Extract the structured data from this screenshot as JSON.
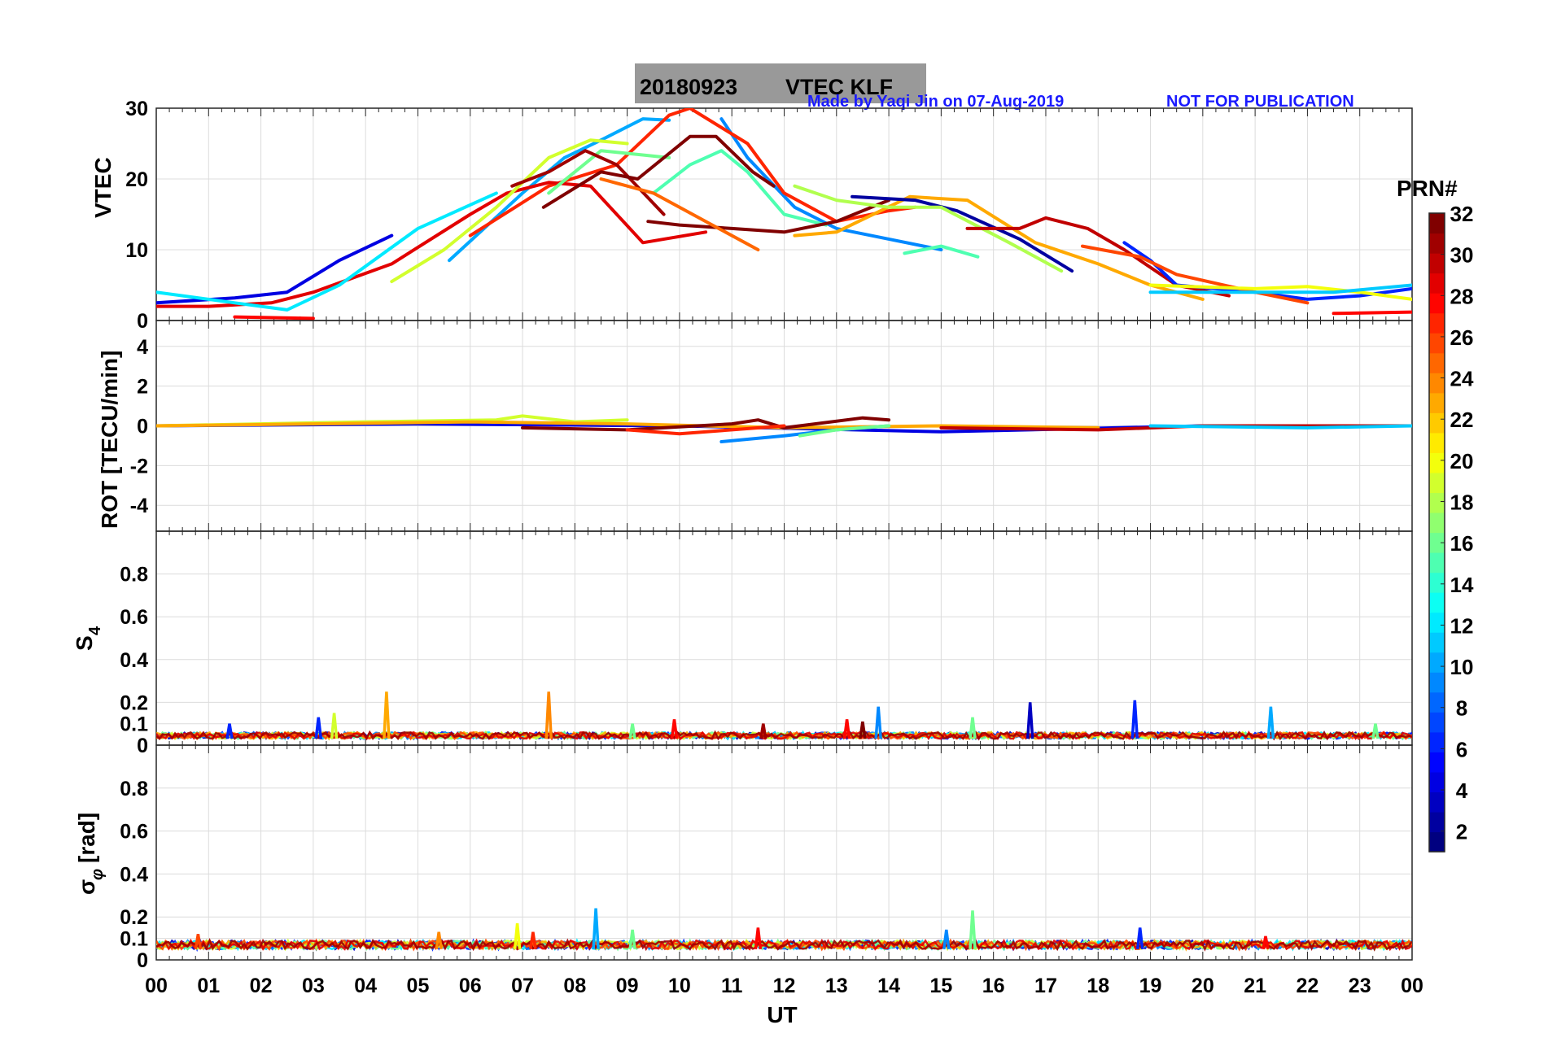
{
  "title": {
    "date": "20180923",
    "text": "VTEC  KLF",
    "credit": "Made by Yaqi Jin on 07-Aug-2019",
    "notice": "NOT FOR PUBLICATION",
    "credit_color": "#1a1aff"
  },
  "xlabel": "UT",
  "xticks": [
    "00",
    "01",
    "02",
    "03",
    "04",
    "05",
    "06",
    "07",
    "08",
    "09",
    "10",
    "11",
    "12",
    "13",
    "14",
    "15",
    "16",
    "17",
    "18",
    "19",
    "20",
    "21",
    "22",
    "23",
    "00"
  ],
  "colorbar": {
    "title": "PRN#",
    "colormap": "jet",
    "range": [
      1,
      32
    ],
    "ticks": [
      "2",
      "4",
      "6",
      "8",
      "10",
      "12",
      "14",
      "16",
      "18",
      "20",
      "22",
      "24",
      "26",
      "28",
      "30",
      "32"
    ]
  },
  "chart_data": [
    {
      "id": "vtec",
      "type": "line",
      "ylabel": "VTEC",
      "xlim": [
        0,
        24
      ],
      "ylim": [
        0,
        30
      ],
      "yticks": [
        "0",
        "10",
        "20",
        "30"
      ],
      "grid": true,
      "series": [
        {
          "prn": 4,
          "points": [
            [
              0,
              2.5
            ],
            [
              1.5,
              3.2
            ],
            [
              2.5,
              4
            ],
            [
              3.5,
              8.5
            ],
            [
              4.5,
              12
            ]
          ]
        },
        {
          "prn": 10,
          "points": [
            [
              5.6,
              8.5
            ],
            [
              7,
              18
            ],
            [
              7.8,
              23
            ],
            [
              8.5,
              25.5
            ],
            [
              9.3,
              28.5
            ],
            [
              9.8,
              28.3
            ]
          ]
        },
        {
          "prn": 9,
          "points": [
            [
              10.8,
              28.5
            ],
            [
              11.3,
              23
            ],
            [
              12.2,
              16
            ],
            [
              13,
              13
            ],
            [
              14,
              11.5
            ],
            [
              15,
              10
            ]
          ]
        },
        {
          "prn": 27,
          "points": [
            [
              6,
              12
            ],
            [
              7.5,
              19
            ],
            [
              8.8,
              22
            ],
            [
              9.8,
              29
            ],
            [
              10.2,
              30
            ],
            [
              11.3,
              25
            ],
            [
              12,
              18
            ],
            [
              13,
              14
            ],
            [
              14,
              15.5
            ],
            [
              14.5,
              16
            ]
          ]
        },
        {
          "prn": 29,
          "points": [
            [
              0,
              2
            ],
            [
              1,
              2
            ],
            [
              2.2,
              2.5
            ],
            [
              3,
              4
            ],
            [
              4.5,
              8
            ],
            [
              6,
              15
            ],
            [
              6.7,
              18
            ],
            [
              7.5,
              19.5
            ],
            [
              8.3,
              19
            ],
            [
              9.3,
              11
            ],
            [
              10.5,
              12.5
            ]
          ]
        },
        {
          "prn": 19,
          "points": [
            [
              4.5,
              5.5
            ],
            [
              5.5,
              10
            ],
            [
              6.5,
              16
            ],
            [
              7.5,
              23
            ],
            [
              8.3,
              25.5
            ],
            [
              9,
              25
            ]
          ]
        },
        {
          "prn": 16,
          "points": [
            [
              7.5,
              18
            ],
            [
              8.5,
              24
            ],
            [
              9.8,
              23
            ]
          ]
        },
        {
          "prn": 15,
          "points": [
            [
              9.5,
              18
            ],
            [
              10.2,
              22
            ],
            [
              10.8,
              24
            ],
            [
              11.3,
              21
            ],
            [
              12,
              15
            ],
            [
              12.8,
              13.5
            ]
          ]
        },
        {
          "prn": 31,
          "points": [
            [
              6.8,
              19
            ],
            [
              7.5,
              21
            ],
            [
              8.2,
              24
            ],
            [
              8.8,
              22
            ],
            [
              9.7,
              15
            ]
          ]
        },
        {
          "prn": 32,
          "points": [
            [
              7.4,
              16
            ],
            [
              8.5,
              21
            ],
            [
              9.2,
              20
            ],
            [
              10.2,
              26
            ],
            [
              10.7,
              26
            ],
            [
              11.4,
              21
            ],
            [
              11.8,
              19
            ]
          ]
        },
        {
          "prn": 32,
          "points": [
            [
              9.4,
              14
            ],
            [
              10,
              13.5
            ],
            [
              11,
              13
            ],
            [
              12,
              12.5
            ],
            [
              13,
              14
            ],
            [
              14,
              17
            ]
          ]
        },
        {
          "prn": 25,
          "points": [
            [
              8.5,
              20
            ],
            [
              9.5,
              18
            ],
            [
              10.5,
              14
            ],
            [
              11.5,
              10
            ]
          ]
        },
        {
          "prn": 23,
          "points": [
            [
              12.2,
              12
            ],
            [
              13,
              12.5
            ],
            [
              14.4,
              17.5
            ],
            [
              15.5,
              17
            ],
            [
              16.8,
              11
            ],
            [
              18,
              8
            ],
            [
              19,
              5
            ],
            [
              20,
              3
            ]
          ]
        },
        {
          "prn": 2,
          "points": [
            [
              13.3,
              17.5
            ],
            [
              14.5,
              17
            ],
            [
              15.3,
              15.5
            ],
            [
              16.5,
              11.5
            ],
            [
              17.5,
              7
            ]
          ]
        },
        {
          "prn": 18,
          "points": [
            [
              12.2,
              19
            ],
            [
              13,
              17
            ],
            [
              14,
              16
            ],
            [
              15,
              16
            ],
            [
              16.3,
              11
            ],
            [
              17.3,
              7
            ]
          ]
        },
        {
          "prn": 30,
          "points": [
            [
              15.5,
              13
            ],
            [
              16.5,
              13
            ],
            [
              17,
              14.5
            ],
            [
              17.8,
              13
            ],
            [
              18.5,
              10
            ],
            [
              19.5,
              5
            ],
            [
              20.5,
              3.5
            ]
          ]
        },
        {
          "prn": 6,
          "points": [
            [
              18.5,
              11
            ],
            [
              19,
              8.5
            ],
            [
              19.5,
              5
            ],
            [
              21,
              4
            ],
            [
              22,
              3
            ],
            [
              23,
              3.5
            ],
            [
              24,
              4.5
            ]
          ]
        },
        {
          "prn": 26,
          "points": [
            [
              17.7,
              10.5
            ],
            [
              18.8,
              9
            ],
            [
              19.5,
              6.5
            ],
            [
              21,
              4
            ],
            [
              22,
              2.5
            ]
          ]
        },
        {
          "prn": 20,
          "points": [
            [
              19,
              5
            ],
            [
              21,
              4.5
            ],
            [
              22,
              4.8
            ],
            [
              23,
              4
            ],
            [
              24,
              3
            ]
          ]
        },
        {
          "prn": 11,
          "points": [
            [
              19,
              4
            ],
            [
              21,
              4
            ],
            [
              22.5,
              4
            ],
            [
              24,
              5
            ]
          ]
        },
        {
          "prn": 15,
          "points": [
            [
              14.3,
              9.5
            ],
            [
              15,
              10.5
            ],
            [
              15.7,
              9
            ]
          ]
        },
        {
          "prn": 28,
          "points": [
            [
              1.5,
              0.5
            ],
            [
              3,
              0.3
            ]
          ]
        },
        {
          "prn": 28,
          "points": [
            [
              22.5,
              1
            ],
            [
              24,
              1.2
            ]
          ]
        },
        {
          "prn": 12,
          "points": [
            [
              0,
              4
            ],
            [
              1.5,
              2.5
            ],
            [
              2.5,
              1.5
            ],
            [
              3.5,
              5
            ],
            [
              5,
              13
            ],
            [
              6.5,
              18
            ]
          ]
        }
      ]
    },
    {
      "id": "rot",
      "type": "line",
      "ylabel": "ROT [TECU/min]",
      "xlim": [
        0,
        24
      ],
      "ylim": [
        -5.3,
        5.3
      ],
      "yticks": [
        "4",
        "2",
        "0",
        "-2",
        "-4"
      ],
      "grid": true,
      "series": [
        {
          "prn": 4,
          "points": [
            [
              0,
              0
            ],
            [
              5,
              0.1
            ],
            [
              10,
              0
            ],
            [
              15,
              -0.3
            ],
            [
              20,
              0
            ],
            [
              24,
              0
            ]
          ]
        },
        {
          "prn": 19,
          "points": [
            [
              0,
              0
            ],
            [
              4,
              0.2
            ],
            [
              6.5,
              0.3
            ],
            [
              7,
              0.5
            ],
            [
              8,
              0.2
            ],
            [
              9,
              0.3
            ]
          ]
        },
        {
          "prn": 23,
          "points": [
            [
              0,
              0
            ],
            [
              3,
              0.1
            ],
            [
              6,
              0.2
            ],
            [
              9,
              0.1
            ],
            [
              12,
              -0.1
            ],
            [
              15,
              0
            ],
            [
              18,
              -0.1
            ]
          ]
        },
        {
          "prn": 32,
          "points": [
            [
              7,
              -0.1
            ],
            [
              9,
              -0.2
            ],
            [
              11,
              0.1
            ],
            [
              11.5,
              0.3
            ],
            [
              12,
              -0.1
            ],
            [
              13.5,
              0.4
            ],
            [
              14,
              0.3
            ]
          ]
        },
        {
          "prn": 27,
          "points": [
            [
              9,
              -0.2
            ],
            [
              10,
              -0.4
            ],
            [
              11,
              -0.2
            ],
            [
              12,
              0
            ]
          ]
        },
        {
          "prn": 9,
          "points": [
            [
              10.8,
              -0.8
            ],
            [
              12,
              -0.5
            ],
            [
              13,
              -0.2
            ],
            [
              14,
              0
            ]
          ]
        },
        {
          "prn": 16,
          "points": [
            [
              12.3,
              -0.5
            ],
            [
              13,
              -0.2
            ],
            [
              14,
              0
            ]
          ]
        },
        {
          "prn": 30,
          "points": [
            [
              15,
              -0.1
            ],
            [
              18,
              -0.2
            ],
            [
              20,
              0
            ],
            [
              24,
              0
            ]
          ]
        },
        {
          "prn": 11,
          "points": [
            [
              19,
              0
            ],
            [
              22,
              -0.1
            ],
            [
              24,
              0
            ]
          ]
        }
      ]
    },
    {
      "id": "s4",
      "type": "line",
      "ylabel": "S4",
      "xlim": [
        0,
        24
      ],
      "ylim": [
        0,
        1
      ],
      "yticks": [
        "0",
        "0.1",
        "0.2",
        "0.4",
        "0.6",
        "0.8"
      ],
      "grid": true,
      "baseline": [
        0.03,
        0.06
      ],
      "spikes": [
        {
          "prn": 6,
          "t": 1.4,
          "v": 0.1
        },
        {
          "prn": 6,
          "t": 3.1,
          "v": 0.13
        },
        {
          "prn": 19,
          "t": 3.4,
          "v": 0.15
        },
        {
          "prn": 23,
          "t": 4.4,
          "v": 0.25
        },
        {
          "prn": 24,
          "t": 7.5,
          "v": 0.25
        },
        {
          "prn": 16,
          "t": 9.1,
          "v": 0.1
        },
        {
          "prn": 28,
          "t": 9.9,
          "v": 0.12
        },
        {
          "prn": 31,
          "t": 11.6,
          "v": 0.1
        },
        {
          "prn": 28,
          "t": 13.2,
          "v": 0.12
        },
        {
          "prn": 32,
          "t": 13.5,
          "v": 0.11
        },
        {
          "prn": 9,
          "t": 13.8,
          "v": 0.18
        },
        {
          "prn": 16,
          "t": 15.6,
          "v": 0.13
        },
        {
          "prn": 3,
          "t": 16.7,
          "v": 0.2
        },
        {
          "prn": 6,
          "t": 18.7,
          "v": 0.21
        },
        {
          "prn": 10,
          "t": 21.3,
          "v": 0.18
        },
        {
          "prn": 16,
          "t": 23.3,
          "v": 0.1
        }
      ]
    },
    {
      "id": "sigphi",
      "type": "line",
      "ylabel": "σφ [rad]",
      "xlim": [
        0,
        24
      ],
      "ylim": [
        0,
        1
      ],
      "yticks": [
        "0",
        "0.1",
        "0.2",
        "0.4",
        "0.6",
        "0.8"
      ],
      "grid": true,
      "baseline": [
        0.05,
        0.09
      ],
      "spikes": [
        {
          "prn": 26,
          "t": 0.8,
          "v": 0.12
        },
        {
          "prn": 24,
          "t": 5.4,
          "v": 0.13
        },
        {
          "prn": 20,
          "t": 6.9,
          "v": 0.17
        },
        {
          "prn": 27,
          "t": 7.2,
          "v": 0.13
        },
        {
          "prn": 10,
          "t": 8.4,
          "v": 0.24
        },
        {
          "prn": 16,
          "t": 9.1,
          "v": 0.14
        },
        {
          "prn": 28,
          "t": 11.5,
          "v": 0.15
        },
        {
          "prn": 9,
          "t": 15.1,
          "v": 0.14
        },
        {
          "prn": 16,
          "t": 15.6,
          "v": 0.23
        },
        {
          "prn": 6,
          "t": 18.8,
          "v": 0.15
        },
        {
          "prn": 28,
          "t": 21.2,
          "v": 0.11
        }
      ]
    }
  ]
}
